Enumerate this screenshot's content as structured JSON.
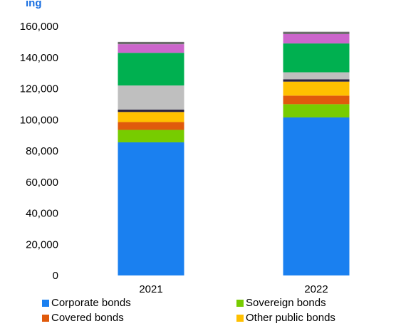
{
  "heading_fragment": "ing",
  "chart_data": {
    "type": "bar",
    "stacked": true,
    "categories": [
      "2021",
      "2022"
    ],
    "ylim": [
      0,
      160000
    ],
    "yticks": [
      "0",
      "20,000",
      "40,000",
      "60,000",
      "80,000",
      "100,000",
      "120,000",
      "140,000",
      "160,000"
    ],
    "ytick_values": [
      0,
      20000,
      40000,
      60000,
      80000,
      100000,
      120000,
      140000,
      160000
    ],
    "grid": false,
    "legend_placement": "bottom",
    "series": [
      {
        "name": "Corporate bonds",
        "color": "#1a80f0",
        "values": [
          85500,
          101500
        ]
      },
      {
        "name": "Sovereign bonds",
        "color": "#77cc00",
        "values": [
          8000,
          8500
        ]
      },
      {
        "name": "Covered bonds",
        "color": "#e05a0c",
        "values": [
          5000,
          5500
        ]
      },
      {
        "name": "Other public bonds",
        "color": "#ffc000",
        "values": [
          6500,
          9000
        ]
      },
      {
        "color": "#2a2240",
        "values": [
          1500,
          1500
        ]
      },
      {
        "color": "#bfbfbf",
        "values": [
          15500,
          4500
        ]
      },
      {
        "color": "#00b050",
        "values": [
          21000,
          18500
        ]
      },
      {
        "color": "#cc66cc",
        "values": [
          5500,
          6000
        ]
      },
      {
        "color": "#6d6d6d",
        "values": [
          1500,
          1500
        ]
      }
    ]
  }
}
